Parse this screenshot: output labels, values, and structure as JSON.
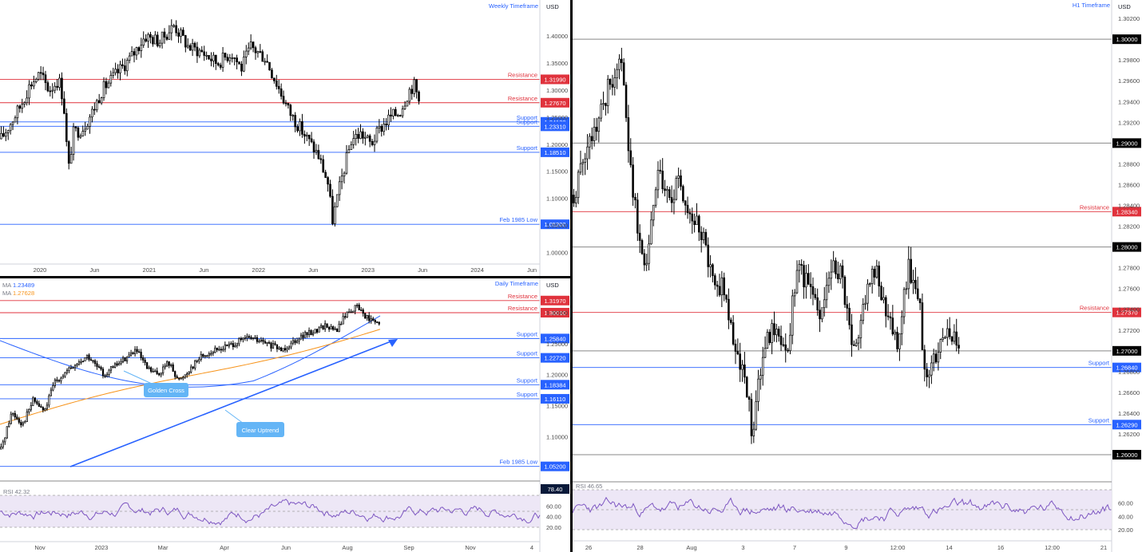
{
  "colors": {
    "resistance": "#e0323c",
    "support": "#2862ff",
    "ma_blue": "#2962ff",
    "ma_orange": "#f7931a",
    "rsi": "#7e57c2",
    "candle": "#000000",
    "callout": "#64b5f6"
  },
  "chart_data": [
    {
      "id": "weekly",
      "type": "candlestick",
      "title": "Weekly Timeframe",
      "currency": "USD",
      "ylim": [
        0.98,
        1.44
      ],
      "y_ticks": [
        "1.40000",
        "1.35000",
        "1.30000",
        "1.25000",
        "1.20000",
        "1.15000",
        "1.10000",
        "1.05000",
        "1.00000"
      ],
      "x_ticks": [
        "2020",
        "Jun",
        "2021",
        "Jun",
        "2022",
        "Jun",
        "2023",
        "Jun",
        "2024",
        "Jun"
      ],
      "levels": [
        {
          "label": "Resistance",
          "value": 1.3199,
          "price": "1.31990",
          "kind": "resistance"
        },
        {
          "label": "Resistance",
          "value": 1.2767,
          "price": "1.27670",
          "kind": "resistance"
        },
        {
          "label": "Support",
          "value": 1.2413,
          "price": "1.24130",
          "kind": "support"
        },
        {
          "label": "Support",
          "value": 1.2331,
          "price": "1.23310",
          "kind": "support"
        },
        {
          "label": "Support",
          "value": 1.1851,
          "price": "1.18510",
          "kind": "support"
        },
        {
          "label": "Feb 1985 Low",
          "value": 1.052,
          "price": "1.05200",
          "kind": "support"
        }
      ],
      "price_path": [
        [
          0,
          1.21
        ],
        [
          0.02,
          1.24
        ],
        [
          0.04,
          1.27
        ],
        [
          0.06,
          1.31
        ],
        [
          0.08,
          1.33
        ],
        [
          0.1,
          1.3
        ],
        [
          0.12,
          1.32
        ],
        [
          0.13,
          1.28
        ],
        [
          0.14,
          1.15
        ],
        [
          0.15,
          1.22
        ],
        [
          0.17,
          1.23
        ],
        [
          0.19,
          1.26
        ],
        [
          0.21,
          1.3
        ],
        [
          0.24,
          1.33
        ],
        [
          0.27,
          1.36
        ],
        [
          0.3,
          1.4
        ],
        [
          0.33,
          1.39
        ],
        [
          0.36,
          1.42
        ],
        [
          0.39,
          1.38
        ],
        [
          0.42,
          1.37
        ],
        [
          0.45,
          1.35
        ],
        [
          0.48,
          1.37
        ],
        [
          0.5,
          1.34
        ],
        [
          0.52,
          1.38
        ],
        [
          0.55,
          1.36
        ],
        [
          0.58,
          1.3
        ],
        [
          0.6,
          1.26
        ],
        [
          0.63,
          1.22
        ],
        [
          0.66,
          1.18
        ],
        [
          0.68,
          1.13
        ],
        [
          0.69,
          1.06
        ],
        [
          0.71,
          1.14
        ],
        [
          0.73,
          1.21
        ],
        [
          0.75,
          1.22
        ],
        [
          0.77,
          1.2
        ],
        [
          0.79,
          1.23
        ],
        [
          0.81,
          1.25
        ],
        [
          0.83,
          1.26
        ],
        [
          0.85,
          1.3
        ],
        [
          0.86,
          1.31
        ],
        [
          0.87,
          1.28
        ]
      ]
    },
    {
      "id": "daily",
      "type": "candlestick",
      "title": "Daily Timeframe",
      "currency": "USD",
      "ylim": [
        1.04,
        1.34
      ],
      "y_ticks": [
        "1.30000",
        "1.25000",
        "1.20000",
        "1.15000",
        "1.10000"
      ],
      "x_ticks": [
        "Nov",
        "2023",
        "Mar",
        "Apr",
        "Jun",
        "Aug",
        "Sep",
        "Nov",
        "4"
      ],
      "ma": [
        {
          "label": "MA",
          "value": "1.23489",
          "color": "#2962ff"
        },
        {
          "label": "MA",
          "value": "1.27628",
          "color": "#f7931a"
        }
      ],
      "levels": [
        {
          "label": "Resistance",
          "value": 1.3197,
          "price": "1.31970",
          "kind": "resistance"
        },
        {
          "label": "Resistance",
          "value": 1.3001,
          "price": "1.30010",
          "kind": "resistance"
        },
        {
          "label": "Support",
          "value": 1.2584,
          "price": "1.25840",
          "kind": "support"
        },
        {
          "label": "Support",
          "value": 1.2272,
          "price": "1.22720",
          "kind": "support"
        },
        {
          "label": "Support",
          "value": 1.18384,
          "price": "1.18384",
          "kind": "support"
        },
        {
          "label": "Support",
          "value": 1.1611,
          "price": "1.16110",
          "kind": "support"
        },
        {
          "label": "Feb 1985 Low",
          "value": 1.052,
          "price": "1.05200",
          "kind": "support"
        }
      ],
      "annotations": [
        "Golden Cross",
        "Clear Uptrend"
      ],
      "price_path": [
        [
          0,
          1.08
        ],
        [
          0.02,
          1.14
        ],
        [
          0.04,
          1.12
        ],
        [
          0.06,
          1.16
        ],
        [
          0.08,
          1.14
        ],
        [
          0.1,
          1.19
        ],
        [
          0.13,
          1.21
        ],
        [
          0.16,
          1.23
        ],
        [
          0.19,
          1.2
        ],
        [
          0.22,
          1.22
        ],
        [
          0.25,
          1.24
        ],
        [
          0.27,
          1.21
        ],
        [
          0.29,
          1.2
        ],
        [
          0.31,
          1.22
        ],
        [
          0.33,
          1.19
        ],
        [
          0.35,
          1.21
        ],
        [
          0.37,
          1.23
        ],
        [
          0.4,
          1.24
        ],
        [
          0.43,
          1.25
        ],
        [
          0.46,
          1.26
        ],
        [
          0.49,
          1.25
        ],
        [
          0.52,
          1.24
        ],
        [
          0.55,
          1.26
        ],
        [
          0.58,
          1.27
        ],
        [
          0.6,
          1.28
        ],
        [
          0.62,
          1.27
        ],
        [
          0.64,
          1.3
        ],
        [
          0.66,
          1.31
        ],
        [
          0.68,
          1.29
        ],
        [
          0.7,
          1.28
        ]
      ],
      "rsi": {
        "label": "RSI",
        "value": "42.32",
        "ticks": [
          "60.00",
          "40.00",
          "20.00"
        ],
        "marker": "78.40"
      }
    },
    {
      "id": "h1",
      "type": "candlestick",
      "title": "H1 Timeframe",
      "currency": "USD",
      "ylim": [
        1.2577,
        1.3027
      ],
      "y_ticks": [
        "1.30200",
        "1.29800",
        "1.29600",
        "1.29400",
        "1.29200",
        "1.28800",
        "1.28600",
        "1.28400",
        "1.28200",
        "1.27800",
        "1.27600",
        "1.27400",
        "1.27200",
        "1.26800",
        "1.26600",
        "1.26400",
        "1.26200"
      ],
      "x_ticks": [
        "26",
        "28",
        "Aug",
        "3",
        "7",
        "9",
        "12:00",
        "14",
        "16",
        "12:00",
        "21"
      ],
      "levels": [
        {
          "label": "",
          "value": 1.3,
          "price": "1.30000",
          "kind": "round"
        },
        {
          "label": "",
          "value": 1.29,
          "price": "1.29000",
          "kind": "round"
        },
        {
          "label": "Resistance",
          "value": 1.2834,
          "price": "1.28340",
          "kind": "resistance"
        },
        {
          "label": "",
          "value": 1.28,
          "price": "1.28000",
          "kind": "round"
        },
        {
          "label": "Resistance",
          "value": 1.2737,
          "price": "1.27370",
          "kind": "resistance"
        },
        {
          "label": "",
          "value": 1.27,
          "price": "1.27000",
          "kind": "round"
        },
        {
          "label": "Support",
          "value": 1.2684,
          "price": "1.26840",
          "kind": "support"
        },
        {
          "label": "Support",
          "value": 1.2629,
          "price": "1.26290",
          "kind": "support"
        },
        {
          "label": "",
          "value": 1.26,
          "price": "1.26000",
          "kind": "round"
        }
      ],
      "price_path": [
        [
          0,
          1.285
        ],
        [
          0.02,
          1.289
        ],
        [
          0.04,
          1.291
        ],
        [
          0.06,
          1.295
        ],
        [
          0.08,
          1.298
        ],
        [
          0.09,
          1.296
        ],
        [
          0.1,
          1.288
        ],
        [
          0.12,
          1.28
        ],
        [
          0.13,
          1.278
        ],
        [
          0.15,
          1.287
        ],
        [
          0.17,
          1.285
        ],
        [
          0.19,
          1.286
        ],
        [
          0.21,
          1.283
        ],
        [
          0.23,
          1.281
        ],
        [
          0.25,
          1.277
        ],
        [
          0.27,
          1.276
        ],
        [
          0.29,
          1.27
        ],
        [
          0.31,
          1.266
        ],
        [
          0.32,
          1.262
        ],
        [
          0.34,
          1.27
        ],
        [
          0.36,
          1.272
        ],
        [
          0.38,
          1.269
        ],
        [
          0.4,
          1.278
        ],
        [
          0.42,
          1.276
        ],
        [
          0.44,
          1.274
        ],
        [
          0.46,
          1.278
        ],
        [
          0.48,
          1.277
        ],
        [
          0.5,
          1.27
        ],
        [
          0.52,
          1.274
        ],
        [
          0.54,
          1.278
        ],
        [
          0.56,
          1.273
        ],
        [
          0.58,
          1.271
        ],
        [
          0.6,
          1.278
        ],
        [
          0.62,
          1.274
        ],
        [
          0.63,
          1.268
        ],
        [
          0.65,
          1.27
        ],
        [
          0.67,
          1.273
        ],
        [
          0.69,
          1.27
        ]
      ],
      "rsi": {
        "label": "RSI",
        "value": "46.65",
        "ticks": [
          "60.00",
          "40.00",
          "20.00"
        ]
      }
    }
  ]
}
